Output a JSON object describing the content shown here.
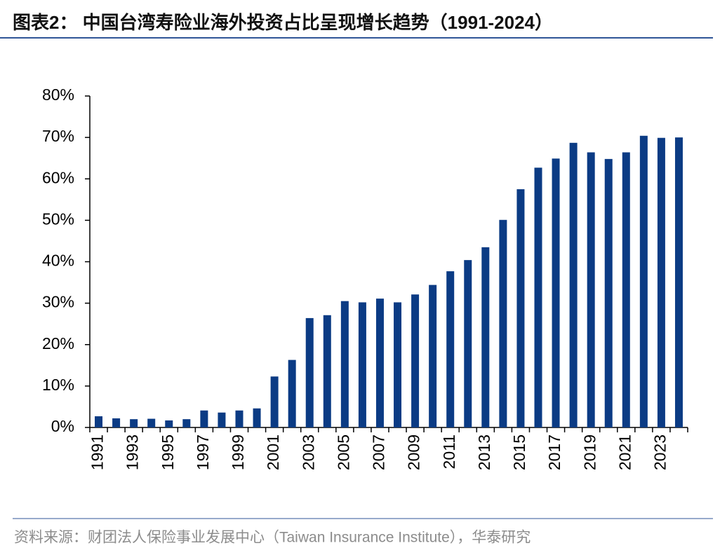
{
  "chart_data": {
    "type": "bar",
    "title": "图表2： 中国台湾寿险业海外投资占比呈现增长趋势（1991-2024）",
    "source": "资料来源：财团法人保险事业发展中心（Taiwan Insurance Institute），华泰研究",
    "categories": [
      "1991",
      null,
      "1993",
      null,
      "1995",
      null,
      "1997",
      null,
      "1999",
      null,
      "2001",
      null,
      "2003",
      null,
      "2005",
      null,
      "2007",
      null,
      "2009",
      null,
      "2011",
      null,
      "2013",
      null,
      "2015",
      null,
      "2017",
      null,
      "2019",
      null,
      "2021",
      null,
      "2023",
      null
    ],
    "values": [
      2.7,
      2.2,
      2.0,
      2.1,
      1.7,
      2.0,
      4.1,
      3.6,
      4.1,
      4.6,
      12.3,
      16.3,
      26.4,
      27.1,
      30.5,
      30.2,
      31.1,
      30.2,
      32.1,
      34.4,
      37.7,
      40.4,
      43.5,
      50.1,
      57.5,
      62.7,
      64.9,
      68.7,
      66.4,
      64.8,
      66.4,
      70.4,
      69.9,
      70.0
    ],
    "color": "#0b3b84",
    "ylim": [
      0,
      80
    ],
    "yticks": [
      {
        "value": 0,
        "label": "0%"
      },
      {
        "value": 10,
        "label": "10%"
      },
      {
        "value": 20,
        "label": "20%"
      },
      {
        "value": 30,
        "label": "30%"
      },
      {
        "value": 40,
        "label": "40%"
      },
      {
        "value": 50,
        "label": "50%"
      },
      {
        "value": 60,
        "label": "60%"
      },
      {
        "value": 70,
        "label": "70%"
      },
      {
        "value": 80,
        "label": "80%"
      }
    ],
    "grid": false
  }
}
